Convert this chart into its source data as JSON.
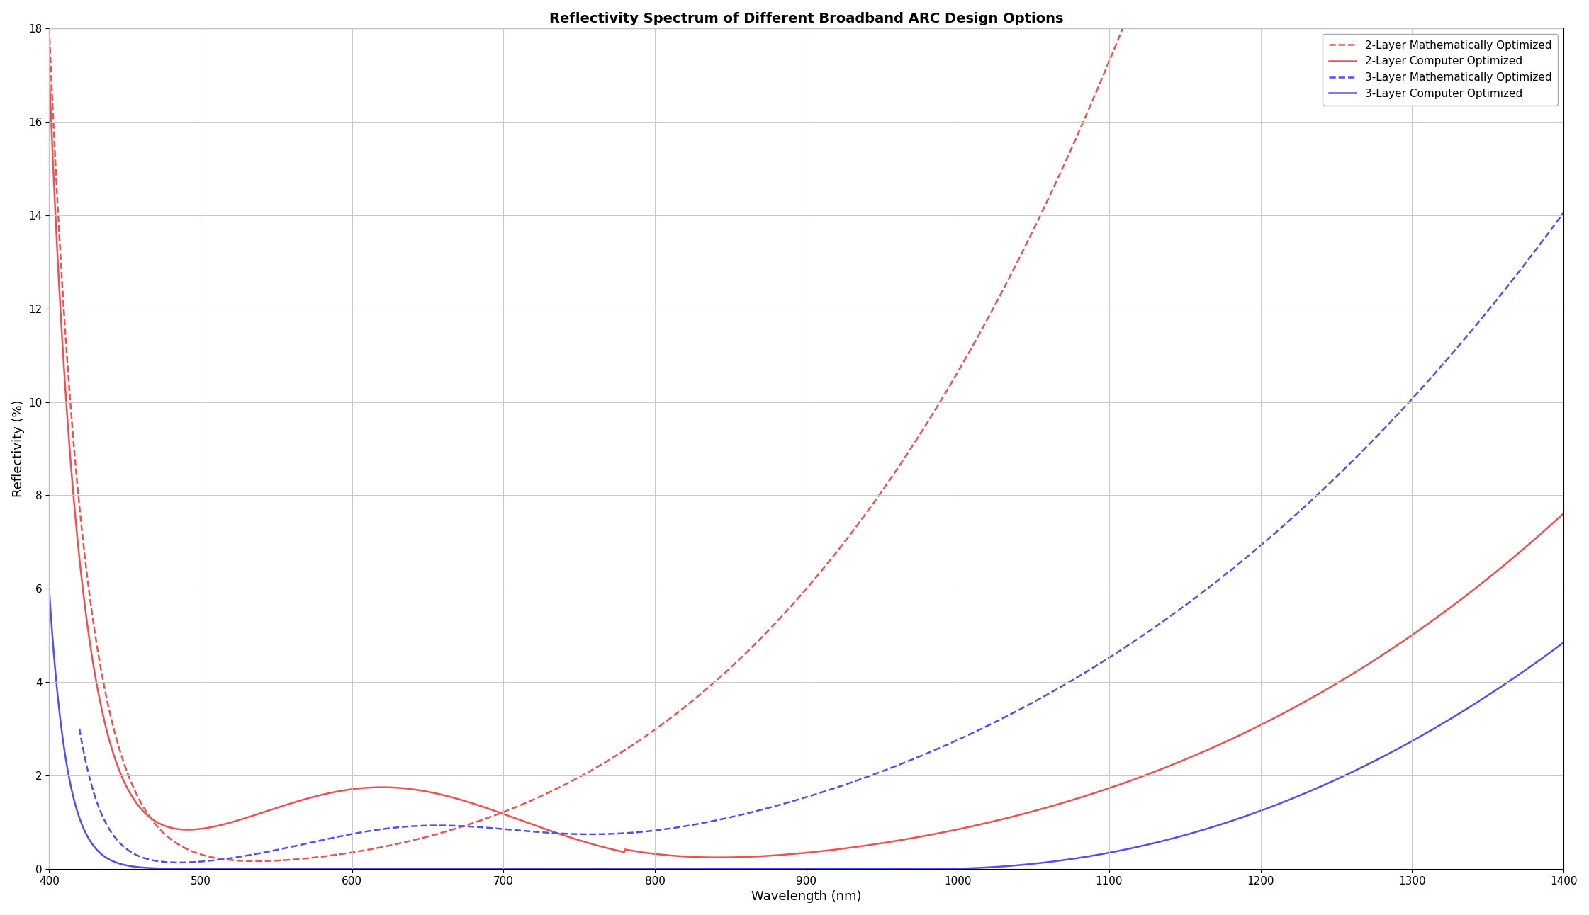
{
  "title": "Reflectivity Spectrum of Different Broadband ARC Design Options",
  "xlabel": "Wavelength (nm)",
  "ylabel": "Reflectivity (%)",
  "xlim": [
    400,
    1400
  ],
  "ylim": [
    0,
    18
  ],
  "yticks": [
    0,
    2,
    4,
    6,
    8,
    10,
    12,
    14,
    16,
    18
  ],
  "xticks": [
    400,
    500,
    600,
    700,
    800,
    900,
    1000,
    1100,
    1200,
    1300,
    1400
  ],
  "background_color": "#ffffff",
  "grid_color": "#c8c8c8",
  "series": [
    {
      "label": "2-Layer Mathematically Optimized",
      "color": "#f05050",
      "linestyle": "--",
      "linewidth": 1.8
    },
    {
      "label": "2-Layer Computer Optimized",
      "color": "#f05050",
      "linestyle": "-",
      "linewidth": 1.8
    },
    {
      "label": "3-Layer Mathematically Optimized",
      "color": "#5050f0",
      "linestyle": "--",
      "linewidth": 1.8
    },
    {
      "label": "3-Layer Computer Optimized",
      "color": "#5050f0",
      "linestyle": "-",
      "linewidth": 1.8
    }
  ]
}
